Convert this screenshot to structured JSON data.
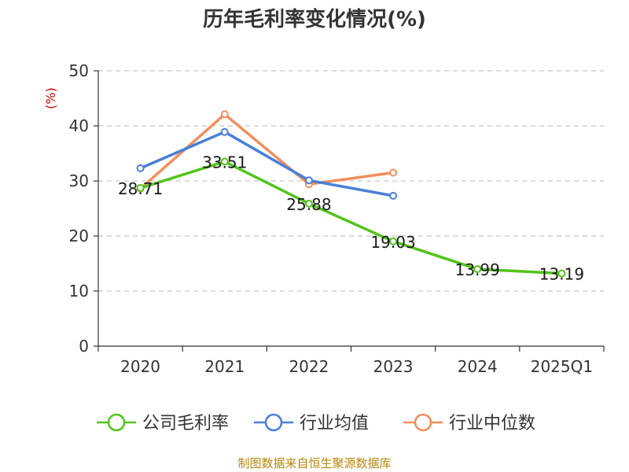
{
  "chart_data": {
    "type": "line",
    "title": "历年毛利率变化情况(%)",
    "ylabel": "(%)",
    "xlabel": "",
    "categories": [
      "2020",
      "2021",
      "2022",
      "2023",
      "2024",
      "2025Q1"
    ],
    "ylim": [
      0,
      50
    ],
    "yticks": [
      0,
      10,
      20,
      30,
      40,
      50
    ],
    "grid": true,
    "legend_position": "bottom",
    "series": [
      {
        "name": "公司毛利率",
        "color": "#52c41a",
        "values": [
          28.71,
          33.51,
          25.88,
          19.03,
          13.99,
          13.19
        ],
        "labels": [
          "28.71",
          "33.51",
          "25.88",
          "19.03",
          "13.99",
          "13.19"
        ]
      },
      {
        "name": "行业均值",
        "color": "#4a7fd9",
        "values": [
          32.3,
          38.9,
          30.1,
          27.3,
          null,
          null
        ]
      },
      {
        "name": "行业中位数",
        "color": "#f28e5c",
        "values": [
          28.6,
          42.1,
          29.4,
          31.5,
          null,
          null
        ]
      }
    ],
    "source": "制图数据来自恒生聚源数据库"
  }
}
